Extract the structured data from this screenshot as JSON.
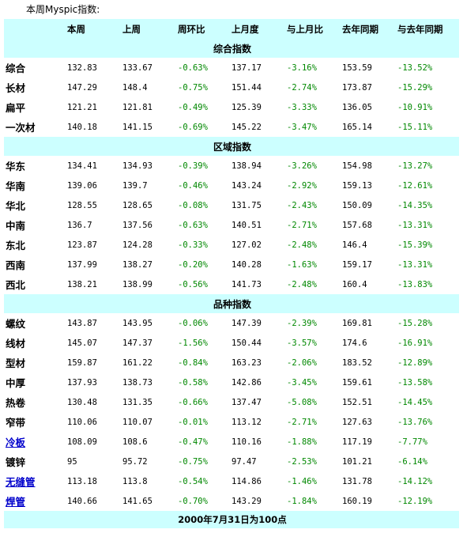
{
  "caption": "本周Myspic指数:",
  "headers": [
    "",
    "本周",
    "上周",
    "周环比",
    "上月度",
    "与上月比",
    "去年同期",
    "与去年同期"
  ],
  "sections": [
    {
      "title": "综合指数",
      "rows": [
        {
          "name": "综合",
          "link": false,
          "values": [
            "132.83",
            "133.67",
            "-0.63%",
            "137.17",
            "-3.16%",
            "153.59",
            "-13.52%"
          ]
        },
        {
          "name": "长材",
          "link": false,
          "values": [
            "147.29",
            "148.4",
            "-0.75%",
            "151.44",
            "-2.74%",
            "173.87",
            "-15.29%"
          ]
        },
        {
          "name": "扁平",
          "link": false,
          "values": [
            "121.21",
            "121.81",
            "-0.49%",
            "125.39",
            "-3.33%",
            "136.05",
            "-10.91%"
          ]
        },
        {
          "name": "一次材",
          "link": false,
          "values": [
            "140.18",
            "141.15",
            "-0.69%",
            "145.22",
            "-3.47%",
            "165.14",
            "-15.11%"
          ]
        }
      ]
    },
    {
      "title": "区域指数",
      "rows": [
        {
          "name": "华东",
          "link": false,
          "values": [
            "134.41",
            "134.93",
            "-0.39%",
            "138.94",
            "-3.26%",
            "154.98",
            "-13.27%"
          ]
        },
        {
          "name": "华南",
          "link": false,
          "values": [
            "139.06",
            "139.7",
            "-0.46%",
            "143.24",
            "-2.92%",
            "159.13",
            "-12.61%"
          ]
        },
        {
          "name": "华北",
          "link": false,
          "values": [
            "128.55",
            "128.65",
            "-0.08%",
            "131.75",
            "-2.43%",
            "150.09",
            "-14.35%"
          ]
        },
        {
          "name": "中南",
          "link": false,
          "values": [
            "136.7",
            "137.56",
            "-0.63%",
            "140.51",
            "-2.71%",
            "157.68",
            "-13.31%"
          ]
        },
        {
          "name": "东北",
          "link": false,
          "values": [
            "123.87",
            "124.28",
            "-0.33%",
            "127.02",
            "-2.48%",
            "146.4",
            "-15.39%"
          ]
        },
        {
          "name": "西南",
          "link": false,
          "values": [
            "137.99",
            "138.27",
            "-0.20%",
            "140.28",
            "-1.63%",
            "159.17",
            "-13.31%"
          ]
        },
        {
          "name": "西北",
          "link": false,
          "values": [
            "138.21",
            "138.99",
            "-0.56%",
            "141.73",
            "-2.48%",
            "160.4",
            "-13.83%"
          ]
        }
      ]
    },
    {
      "title": "品种指数",
      "rows": [
        {
          "name": "螺纹",
          "link": false,
          "values": [
            "143.87",
            "143.95",
            "-0.06%",
            "147.39",
            "-2.39%",
            "169.81",
            "-15.28%"
          ]
        },
        {
          "name": "线材",
          "link": false,
          "values": [
            "145.07",
            "147.37",
            "-1.56%",
            "150.44",
            "-3.57%",
            "174.6",
            "-16.91%"
          ]
        },
        {
          "name": "型材",
          "link": false,
          "values": [
            "159.87",
            "161.22",
            "-0.84%",
            "163.23",
            "-2.06%",
            "183.52",
            "-12.89%"
          ]
        },
        {
          "name": "中厚",
          "link": false,
          "values": [
            "137.93",
            "138.73",
            "-0.58%",
            "142.86",
            "-3.45%",
            "159.61",
            "-13.58%"
          ]
        },
        {
          "name": "热卷",
          "link": false,
          "values": [
            "130.48",
            "131.35",
            "-0.66%",
            "137.47",
            "-5.08%",
            "152.51",
            "-14.45%"
          ]
        },
        {
          "name": "窄带",
          "link": false,
          "values": [
            "110.06",
            "110.07",
            "-0.01%",
            "113.12",
            "-2.71%",
            "127.63",
            "-13.76%"
          ]
        },
        {
          "name": "冷板",
          "link": true,
          "values": [
            "108.09",
            "108.6",
            "-0.47%",
            "110.16",
            "-1.88%",
            "117.19",
            "-7.77%"
          ]
        },
        {
          "name": "镀锌",
          "link": false,
          "values": [
            "95",
            "95.72",
            "-0.75%",
            "97.47",
            "-2.53%",
            "101.21",
            "-6.14%"
          ]
        },
        {
          "name": "无缝管",
          "link": true,
          "values": [
            "113.18",
            "113.8",
            "-0.54%",
            "114.86",
            "-1.46%",
            "131.78",
            "-14.12%"
          ]
        },
        {
          "name": "焊管",
          "link": true,
          "values": [
            "140.66",
            "141.65",
            "-0.70%",
            "143.29",
            "-1.84%",
            "160.19",
            "-12.19%"
          ]
        }
      ]
    }
  ],
  "footer": "2000年7月31日为100点",
  "colors": {
    "header_bg": "#ccffff",
    "change_text": "#008800",
    "link": "#0000cc"
  }
}
